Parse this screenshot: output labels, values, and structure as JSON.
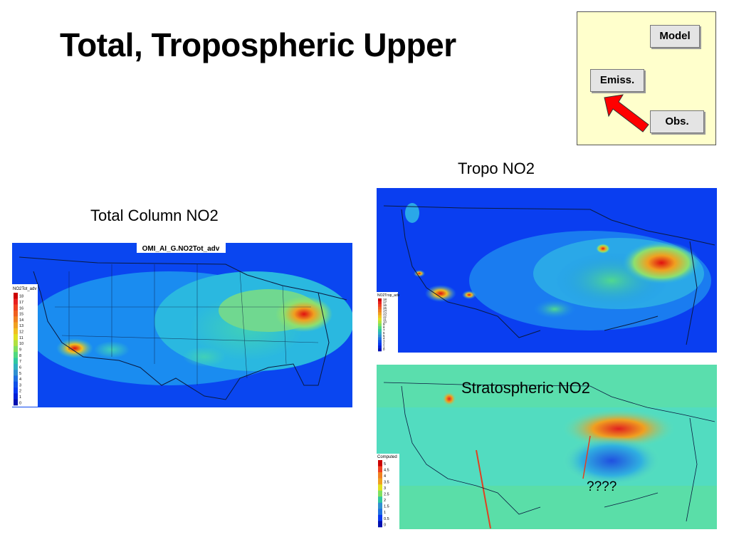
{
  "slide": {
    "title": "Total, Tropospheric Upper"
  },
  "flow_diagram": {
    "nodes": {
      "model": "Model",
      "emiss": "Emiss.",
      "obs": "Obs."
    },
    "arrow_color": "#ff0000"
  },
  "maps": {
    "total": {
      "caption": "Total Column NO2",
      "header": "OMI_AI_G.NO2Tot_adv",
      "colorbar_title": "NO2Tot_adv",
      "colorbar_ticks": [
        "18",
        "17",
        "16",
        "15",
        "14",
        "13",
        "12",
        "11",
        "10",
        "9",
        "8",
        "7",
        "6",
        "5",
        "4",
        "3",
        "2",
        "1",
        "0"
      ]
    },
    "tropo": {
      "caption": "Tropo NO2",
      "colorbar_title": "NO2Trop_adv",
      "colorbar_ticks": [
        "18",
        "17",
        "16",
        "15",
        "14",
        "13",
        "12",
        "11",
        "10",
        "9",
        "8",
        "7",
        "6",
        "5",
        "4",
        "3",
        "2",
        "1",
        "0"
      ]
    },
    "strat": {
      "caption": "Stratospheric NO2",
      "annotation": "????",
      "colorbar_title": "Computed",
      "colorbar_ticks": [
        "5",
        "4.5",
        "4",
        "3.5",
        "3",
        "2.5",
        "2",
        "1.5",
        "1",
        "0.5",
        "0"
      ]
    }
  },
  "colors": {
    "map_low": "#0a3cf0",
    "map_mid": "#3ad3c0",
    "map_high": "#e01010",
    "strat_base": "#5ee0b8"
  }
}
